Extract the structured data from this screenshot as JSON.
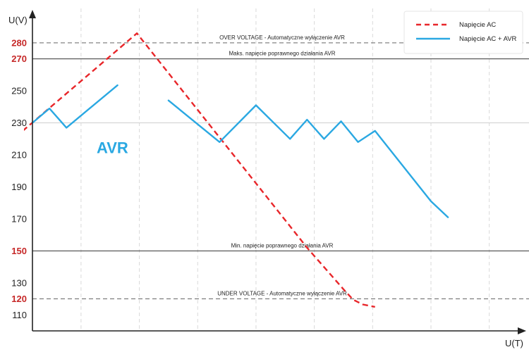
{
  "chart_data": {
    "type": "line",
    "xlabel": "U(T)",
    "ylabel": "U(V)",
    "ylim": [
      100,
      298
    ],
    "xlim": [
      0,
      100
    ],
    "grid": true,
    "legend_position": "top-right",
    "y_ticks": [
      {
        "value": 280,
        "label": "280",
        "highlight": true
      },
      {
        "value": 270,
        "label": "270",
        "highlight": true
      },
      {
        "value": 250,
        "label": "250",
        "highlight": false
      },
      {
        "value": 230,
        "label": "230",
        "highlight": false
      },
      {
        "value": 210,
        "label": "210",
        "highlight": false
      },
      {
        "value": 190,
        "label": "190",
        "highlight": false
      },
      {
        "value": 170,
        "label": "170",
        "highlight": false
      },
      {
        "value": 150,
        "label": "150",
        "highlight": true
      },
      {
        "value": 130,
        "label": "130",
        "highlight": false
      },
      {
        "value": 120,
        "label": "120",
        "highlight": true
      },
      {
        "value": 110,
        "label": "110",
        "highlight": false
      }
    ],
    "x_grid": [
      10,
      22,
      34,
      46,
      58,
      70,
      82,
      94
    ],
    "reference_lines": [
      {
        "y": 280,
        "label": "OVER VOLTAGE - Automatyczne wyłączenie AVR",
        "style": "dashed"
      },
      {
        "y": 270,
        "label": "Maks. napięcie poprawnego działania AVR",
        "style": "solid"
      },
      {
        "y": 230,
        "label": "",
        "style": "light"
      },
      {
        "y": 150,
        "label": "Min. napięcie poprawnego działania AVR",
        "style": "solid"
      },
      {
        "y": 120,
        "label": "UNDER VOLTAGE - Automatyczne wyłączenie AVR",
        "style": "dashed"
      }
    ],
    "series": [
      {
        "name": "Napięcie AC",
        "style": "dashed",
        "color": "#e8262a",
        "points": [
          [
            -2,
            225
          ],
          [
            21.5,
            286
          ],
          [
            56.5,
            152
          ],
          [
            64,
            126
          ],
          [
            66,
            119.5
          ],
          [
            68,
            116.5
          ],
          [
            70.5,
            115
          ]
        ]
      },
      {
        "name": "Napięcie AC  + AVR",
        "style": "solid",
        "color": "#2aa8e2",
        "segments": [
          [
            [
              0,
              230
            ],
            [
              3.5,
              239
            ],
            [
              7,
              227
            ],
            [
              17.5,
              253.5
            ]
          ],
          [
            [
              28,
              244
            ],
            [
              38.5,
              218
            ],
            [
              46,
              241
            ],
            [
              53,
              220
            ],
            [
              56.5,
              232
            ],
            [
              60,
              220
            ],
            [
              63.5,
              231
            ],
            [
              67,
              218
            ],
            [
              70.5,
              225
            ],
            [
              82,
              181
            ],
            [
              85.5,
              171
            ]
          ]
        ]
      }
    ],
    "annotations": [
      {
        "text": "AVR",
        "x": 13.2,
        "y": 211,
        "color": "#2aa8e2"
      }
    ]
  },
  "colors": {
    "highlight_tick": "#c62828",
    "normal_tick": "#222222",
    "grid": "#d9d9d9",
    "reference": "#333333",
    "axis": "#222222"
  }
}
